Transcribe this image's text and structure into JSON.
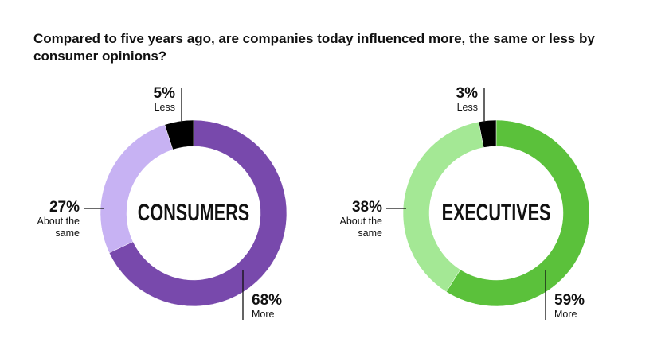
{
  "title": "Compared to five years ago, are companies today influenced more, the same or less by consumer opinions?",
  "chart_data": [
    {
      "type": "pie",
      "center_label": "CONSUMERS",
      "categories": [
        "More",
        "About the same",
        "Less"
      ],
      "values": [
        68,
        27,
        5
      ],
      "value_labels": [
        "68%",
        "27%",
        "5%"
      ],
      "colors": [
        "#7849ac",
        "#c7b2f3",
        "#000000"
      ]
    },
    {
      "type": "pie",
      "center_label": "EXECUTIVES",
      "categories": [
        "More",
        "About the same",
        "Less"
      ],
      "values": [
        59,
        38,
        3
      ],
      "value_labels": [
        "59%",
        "38%",
        "3%"
      ],
      "colors": [
        "#5bc13b",
        "#a4e895",
        "#000000"
      ]
    }
  ]
}
